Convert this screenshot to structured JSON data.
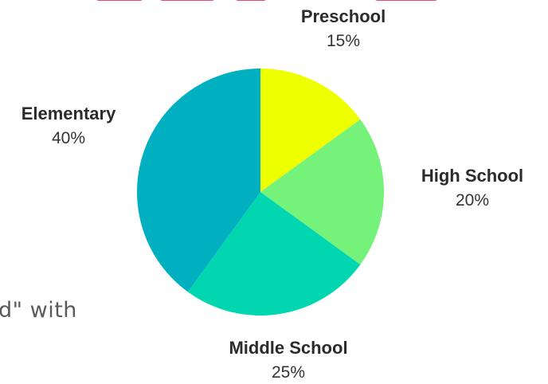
{
  "colors": {
    "preschool": "#eeff00",
    "high_school": "#74f27a",
    "middle_school": "#00d7b1",
    "elementary": "#00b0c0",
    "title_fragment": "#e34d6d",
    "body_text": "#5a5a5a"
  },
  "background_text": "d\" with",
  "chart_data": {
    "type": "pie",
    "title": "",
    "start_angle_deg": 0,
    "direction": "clockwise",
    "slices": [
      {
        "label": "Preschool",
        "value": 15,
        "display": "15%",
        "color": "#eeff00"
      },
      {
        "label": "High School",
        "value": 20,
        "display": "20%",
        "color": "#74f27a"
      },
      {
        "label": "Middle School",
        "value": 25,
        "display": "25%",
        "color": "#00d7b1"
      },
      {
        "label": "Elementary",
        "value": 40,
        "display": "40%",
        "color": "#00b0c0"
      }
    ]
  }
}
